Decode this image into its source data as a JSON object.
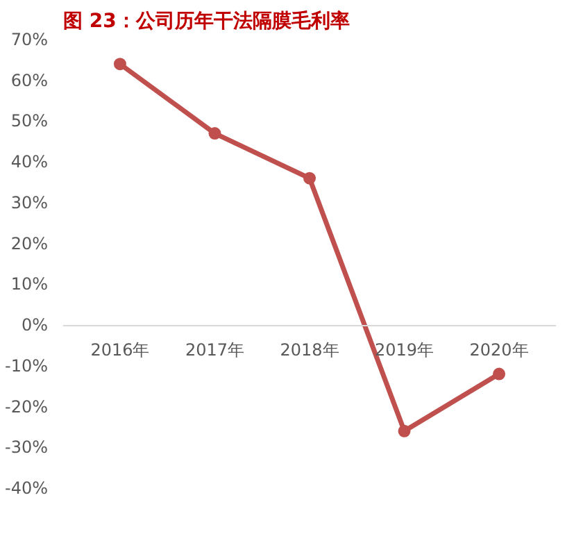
{
  "chart_data": {
    "type": "line",
    "title": "图 23：公司历年干法隔膜毛利率",
    "categories": [
      "2016年",
      "2017年",
      "2018年",
      "2019年",
      "2020年"
    ],
    "series": [
      {
        "color": "#c0504d",
        "values": [
          64,
          47,
          36,
          -26,
          -12
        ]
      }
    ],
    "ylim": [
      -40,
      70
    ],
    "yticks": [
      {
        "value": -40,
        "label": "-40%"
      },
      {
        "value": -30,
        "label": "-30%"
      },
      {
        "value": -20,
        "label": "-20%"
      },
      {
        "value": -10,
        "label": "-10%"
      },
      {
        "value": 0,
        "label": "0%"
      },
      {
        "value": 10,
        "label": "10%"
      },
      {
        "value": 20,
        "label": "20%"
      },
      {
        "value": 30,
        "label": "30%"
      },
      {
        "value": 40,
        "label": "40%"
      },
      {
        "value": 50,
        "label": "50%"
      },
      {
        "value": 60,
        "label": "60%"
      },
      {
        "value": 70,
        "label": "70%"
      }
    ],
    "grid": false,
    "marker": "circle",
    "line_style": "solid"
  }
}
